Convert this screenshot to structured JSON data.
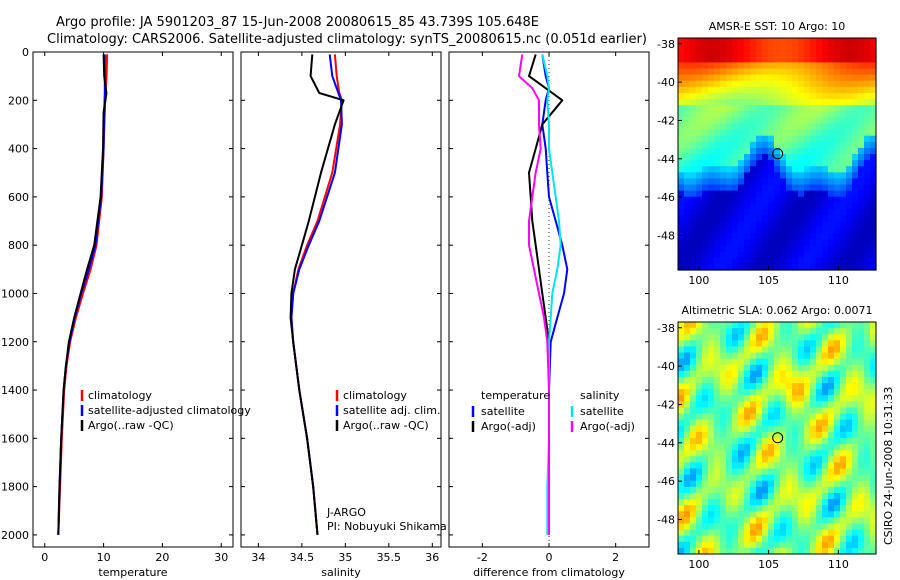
{
  "header": {
    "line1": "Argo profile: JA 5901203_87 15-Jun-2008 20080615_85 43.739S 105.648E",
    "line2": "Climatology: CARS2006. Satellite-adjusted climatology: synTS_20080615.nc (0.051d earlier)"
  },
  "side_label": "CSIRO 24-Jun-2008 10:31:33",
  "colors": {
    "clim": "#ff0000",
    "sat": "#0000ff",
    "argo": "#000000",
    "sat_diff_s": "#00e5ee",
    "argo_diff_s": "#ff00ff"
  },
  "chart_data": [
    {
      "type": "line",
      "id": "temperature",
      "xlabel": "temperature",
      "ylabel": "",
      "xlim": [
        -2,
        32
      ],
      "ylim": [
        2050,
        0
      ],
      "xticks": [
        0,
        10,
        20,
        30
      ],
      "yticks": [
        0,
        200,
        400,
        600,
        800,
        1000,
        1200,
        1400,
        1600,
        1800,
        2000
      ],
      "legend": [
        "climatology",
        "satellite-adjusted climatology",
        "Argo(..raw -QC)"
      ],
      "y": [
        10,
        100,
        170,
        250,
        400,
        600,
        800,
        900,
        1000,
        1100,
        1200,
        1300,
        1400,
        1600,
        1800,
        2000
      ],
      "series": [
        {
          "name": "climatology",
          "color": "#ff0000",
          "values": [
            10.6,
            10.5,
            10.3,
            10.2,
            10.0,
            9.7,
            8.8,
            7.8,
            6.5,
            5.3,
            4.3,
            3.7,
            3.3,
            2.9,
            2.6,
            2.3
          ]
        },
        {
          "name": "satellite-adjusted climatology",
          "color": "#0000ff",
          "values": [
            10.2,
            10.2,
            10.2,
            10.1,
            10.0,
            9.6,
            8.6,
            7.5,
            6.2,
            5.1,
            4.2,
            3.6,
            3.2,
            2.8,
            2.5,
            2.3
          ]
        },
        {
          "name": "Argo(..raw -QC)",
          "color": "#000000",
          "values": [
            10.0,
            10.1,
            10.5,
            10.0,
            9.9,
            9.5,
            8.4,
            7.2,
            6.1,
            5.0,
            4.1,
            3.6,
            3.2,
            2.8,
            2.5,
            2.3
          ]
        }
      ]
    },
    {
      "type": "line",
      "id": "salinity",
      "xlabel": "salinity",
      "ylabel": "",
      "xlim": [
        33.8,
        36.1
      ],
      "ylim": [
        2050,
        0
      ],
      "xticks": [
        34,
        34.5,
        35,
        35.5,
        36
      ],
      "yticks": [
        0,
        200,
        400,
        600,
        800,
        1000,
        1200,
        1400,
        1600,
        1800,
        2000
      ],
      "legend": [
        "climatology",
        "satellite adj. clim.",
        "Argo(..raw -QC)"
      ],
      "annotation": [
        "J-ARGO",
        "PI: Nobuyuki Shikama"
      ],
      "y": [
        10,
        100,
        170,
        200,
        300,
        500,
        700,
        800,
        900,
        1000,
        1100,
        1200,
        1400,
        1600,
        1800,
        2000
      ],
      "series": [
        {
          "name": "climatology",
          "color": "#ff0000",
          "values": [
            34.88,
            34.9,
            34.93,
            34.96,
            34.94,
            34.85,
            34.68,
            34.56,
            34.46,
            34.4,
            34.38,
            34.4,
            34.47,
            34.56,
            34.63,
            34.68
          ]
        },
        {
          "name": "satellite adj. clim.",
          "color": "#0000ff",
          "values": [
            34.82,
            34.85,
            34.92,
            34.95,
            34.96,
            34.88,
            34.7,
            34.58,
            34.47,
            34.4,
            34.38,
            34.4,
            34.47,
            34.56,
            34.63,
            34.68
          ]
        },
        {
          "name": "Argo(..raw -QC)",
          "color": "#000000",
          "values": [
            34.62,
            34.6,
            34.7,
            34.98,
            34.88,
            34.72,
            34.58,
            34.5,
            34.42,
            34.38,
            34.37,
            34.4,
            34.47,
            34.56,
            34.63,
            34.68
          ]
        }
      ]
    },
    {
      "type": "line",
      "id": "difference",
      "xlabel": "difference from climatology",
      "ylabel": "",
      "xlim": [
        -3,
        3
      ],
      "ylim": [
        2050,
        0
      ],
      "xticks": [
        -2,
        0,
        2
      ],
      "yticks": [
        0,
        200,
        400,
        600,
        800,
        1000,
        1200,
        1400,
        1600,
        1800,
        2000
      ],
      "legend_columns": [
        {
          "heading": "temperature",
          "items": [
            "satellite",
            "Argo(-adj)"
          ]
        },
        {
          "heading": "salinity",
          "items": [
            "satellite",
            "Argo(-adj)"
          ]
        }
      ],
      "y": [
        10,
        100,
        150,
        200,
        300,
        400,
        500,
        600,
        700,
        800,
        900,
        1000,
        1100,
        1200,
        1400,
        1600,
        1800,
        2000
      ],
      "series": [
        {
          "name": "temperature satellite",
          "color": "#0000ff",
          "values": [
            -0.2,
            -0.1,
            0.0,
            -0.1,
            -0.2,
            -0.1,
            -0.05,
            0.0,
            0.2,
            0.4,
            0.55,
            0.45,
            0.25,
            0.05,
            0.0,
            0.0,
            0.0,
            0.0
          ]
        },
        {
          "name": "temperature Argo(-adj)",
          "color": "#000000",
          "values": [
            -0.4,
            -0.6,
            -0.1,
            0.4,
            -0.2,
            -0.4,
            -0.6,
            -0.55,
            -0.5,
            -0.4,
            -0.3,
            -0.2,
            -0.1,
            0.0,
            0.0,
            0.0,
            0.0,
            0.0
          ]
        },
        {
          "name": "salinity satellite",
          "color": "#00e5ee",
          "values": [
            -0.2,
            -0.05,
            0.0,
            -0.05,
            0.0,
            0.0,
            0.1,
            0.2,
            0.3,
            0.35,
            0.25,
            0.1,
            0.05,
            0.0,
            0.0,
            0.0,
            -0.05,
            -0.05
          ]
        },
        {
          "name": "salinity Argo(-adj)",
          "color": "#ff00ff",
          "values": [
            -0.8,
            -0.9,
            -0.5,
            -0.3,
            -0.3,
            -0.25,
            -0.4,
            -0.5,
            -0.6,
            -0.6,
            -0.45,
            -0.3,
            -0.15,
            -0.05,
            0.0,
            0.0,
            0.0,
            0.0
          ]
        }
      ]
    },
    {
      "type": "heatmap",
      "id": "sst-map",
      "title": "AMSR-E SST: 10 Argo: 10",
      "xlim": [
        98.5,
        112.7
      ],
      "ylim": [
        -49.8,
        -37.7
      ],
      "xticks": [
        100,
        105,
        110
      ],
      "yticks": [
        -38,
        -40,
        -42,
        -44,
        -46,
        -48
      ],
      "marker": {
        "lon": 105.648,
        "lat": -43.739
      },
      "colormap": "jet"
    },
    {
      "type": "heatmap",
      "id": "sla-map",
      "title": "Altimetric SLA: 0.062 Argo: 0.0071",
      "xlim": [
        98.5,
        112.7
      ],
      "ylim": [
        -49.8,
        -37.7
      ],
      "xticks": [
        100,
        105,
        110
      ],
      "yticks": [
        -38,
        -40,
        -42,
        -44,
        -46,
        -48
      ],
      "marker": {
        "lon": 105.648,
        "lat": -43.739
      },
      "colormap": "jet"
    }
  ]
}
